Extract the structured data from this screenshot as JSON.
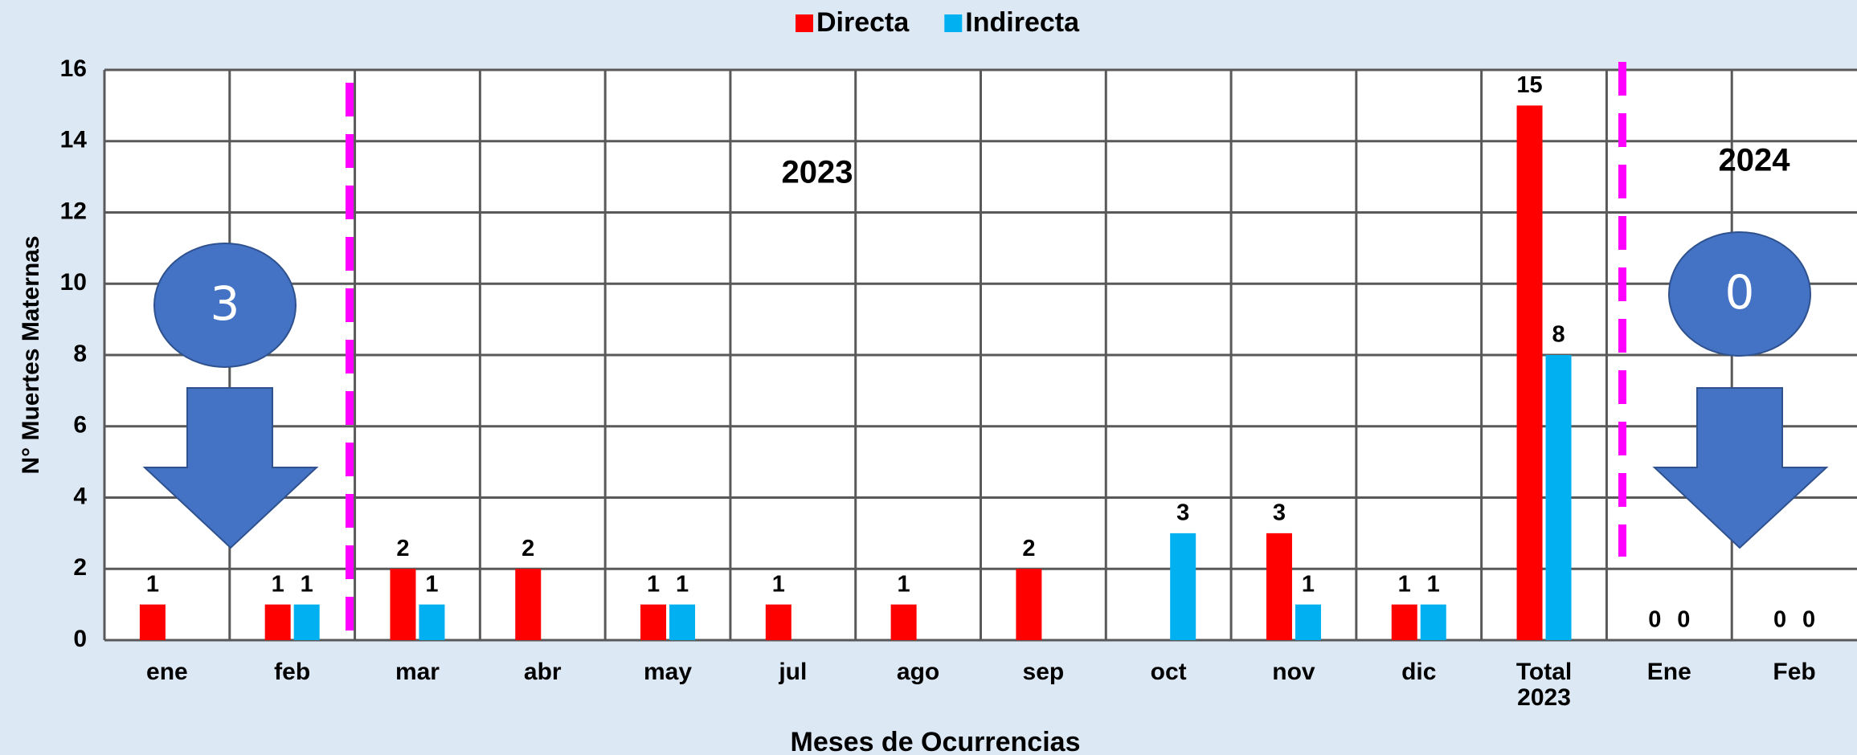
{
  "chart_data": {
    "type": "bar",
    "categories": [
      "ene",
      "feb",
      "mar",
      "abr",
      "may",
      "jul",
      "ago",
      "sep",
      "oct",
      "nov",
      "dic",
      "Total 2023",
      "Ene",
      "Feb"
    ],
    "series": [
      {
        "name": "Directa",
        "color": "#ff0000",
        "values": [
          1,
          1,
          2,
          2,
          1,
          1,
          1,
          2,
          null,
          3,
          1,
          15,
          0,
          0
        ]
      },
      {
        "name": "Indirecta",
        "color": "#00b0f0",
        "values": [
          null,
          1,
          1,
          null,
          1,
          null,
          null,
          null,
          3,
          1,
          1,
          8,
          0,
          0
        ]
      }
    ],
    "ylim": [
      0,
      16
    ],
    "yticks": [
      0,
      2,
      4,
      6,
      8,
      10,
      12,
      14,
      16
    ],
    "grid": true,
    "legend": "top",
    "y_label": "N° Muertes Maternas",
    "x_label": "Meses de Ocurrencias",
    "annotations": [
      "2023",
      "2024",
      "3",
      "0"
    ]
  }
}
